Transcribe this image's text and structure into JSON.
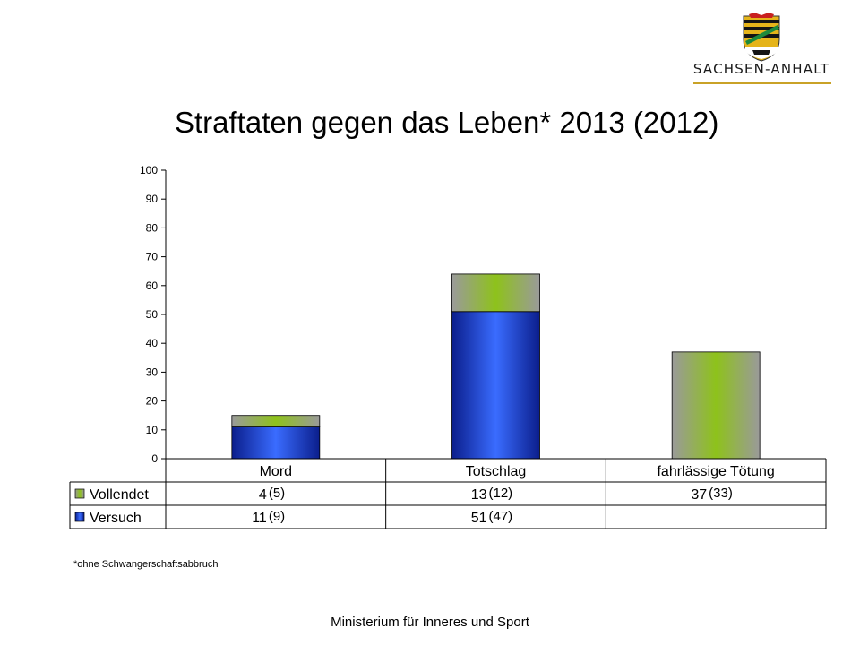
{
  "logo": {
    "text": "SACHSEN-ANHALT",
    "colors": {
      "gold": "#e5b41a",
      "black": "#151515",
      "green": "#1c8a3c",
      "red": "#c8201f",
      "rule": "#c9a227"
    }
  },
  "title": "Straftaten gegen das Leben* 2013 (2012)",
  "footnote": "*ohne Schwangerschaftsabbruch",
  "footer": "Ministerium für Inneres und Sport",
  "chart_data": {
    "type": "bar",
    "stacked": true,
    "categories": [
      "Mord",
      "Totschlag",
      "fahrlässige Tötung"
    ],
    "series": [
      {
        "name": "Versuch",
        "values": [
          11,
          51,
          null
        ],
        "color": "#2f62ff",
        "table_values": [
          "11",
          "51",
          ""
        ],
        "table_prev": [
          "(9)",
          "(47)",
          ""
        ]
      },
      {
        "name": "Vollendet",
        "values": [
          4,
          13,
          37
        ],
        "color": "#8ec21b",
        "table_values": [
          "4",
          "13",
          "37"
        ],
        "table_prev": [
          "(5)",
          "(12)",
          "(33)"
        ]
      }
    ],
    "ylim": [
      0,
      100
    ],
    "yticks": [
      "0",
      "10",
      "20",
      "30",
      "40",
      "50",
      "60",
      "70",
      "80",
      "90",
      "100"
    ],
    "legend_position": "data-table",
    "grid": false
  }
}
